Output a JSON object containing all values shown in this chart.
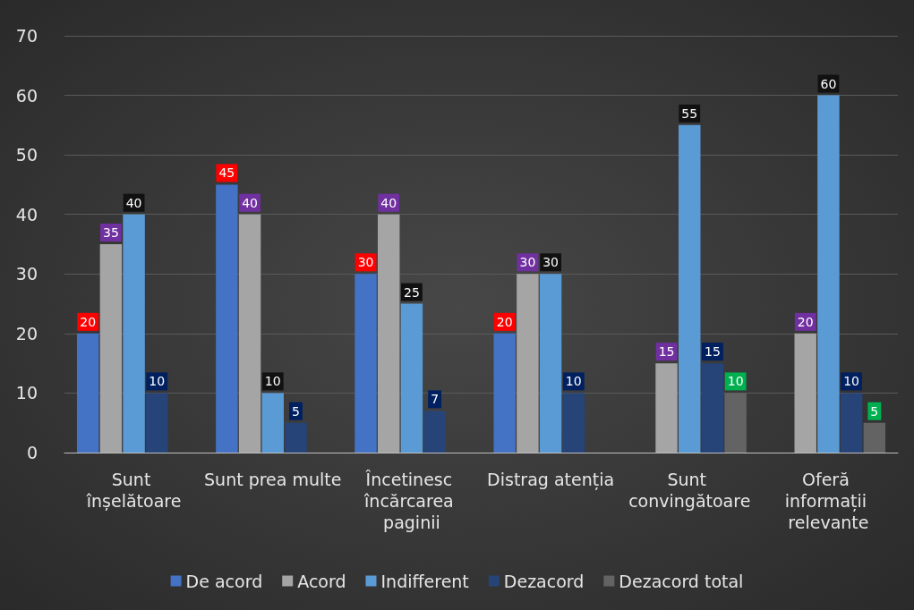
{
  "chart_data": {
    "type": "bar",
    "categories": [
      "Sunt înșelătoare",
      "Sunt prea multe",
      "Încetinesc încărcarea paginii",
      "Distrag atenția",
      "Sunt convingătoare",
      "Oferă informații relevante"
    ],
    "series": [
      {
        "name": "De acord",
        "color": "#4472c4",
        "values": [
          20,
          45,
          30,
          20,
          null,
          null
        ]
      },
      {
        "name": "Acord",
        "color": "#a5a5a5",
        "values": [
          35,
          40,
          40,
          30,
          15,
          20
        ]
      },
      {
        "name": "Indifferent",
        "color": "#5b9bd5",
        "values": [
          40,
          10,
          25,
          30,
          55,
          60
        ]
      },
      {
        "name": "Dezacord",
        "color": "#264478",
        "values": [
          10,
          5,
          7,
          10,
          15,
          10
        ]
      },
      {
        "name": "Dezacord total",
        "color": "#636363",
        "values": [
          null,
          null,
          null,
          null,
          10,
          5
        ]
      }
    ],
    "ylim": [
      0,
      70
    ],
    "yticks": [
      0,
      10,
      20,
      30,
      40,
      50,
      60,
      70
    ],
    "grid": "y",
    "legend": "bottom",
    "data_labels": true
  }
}
